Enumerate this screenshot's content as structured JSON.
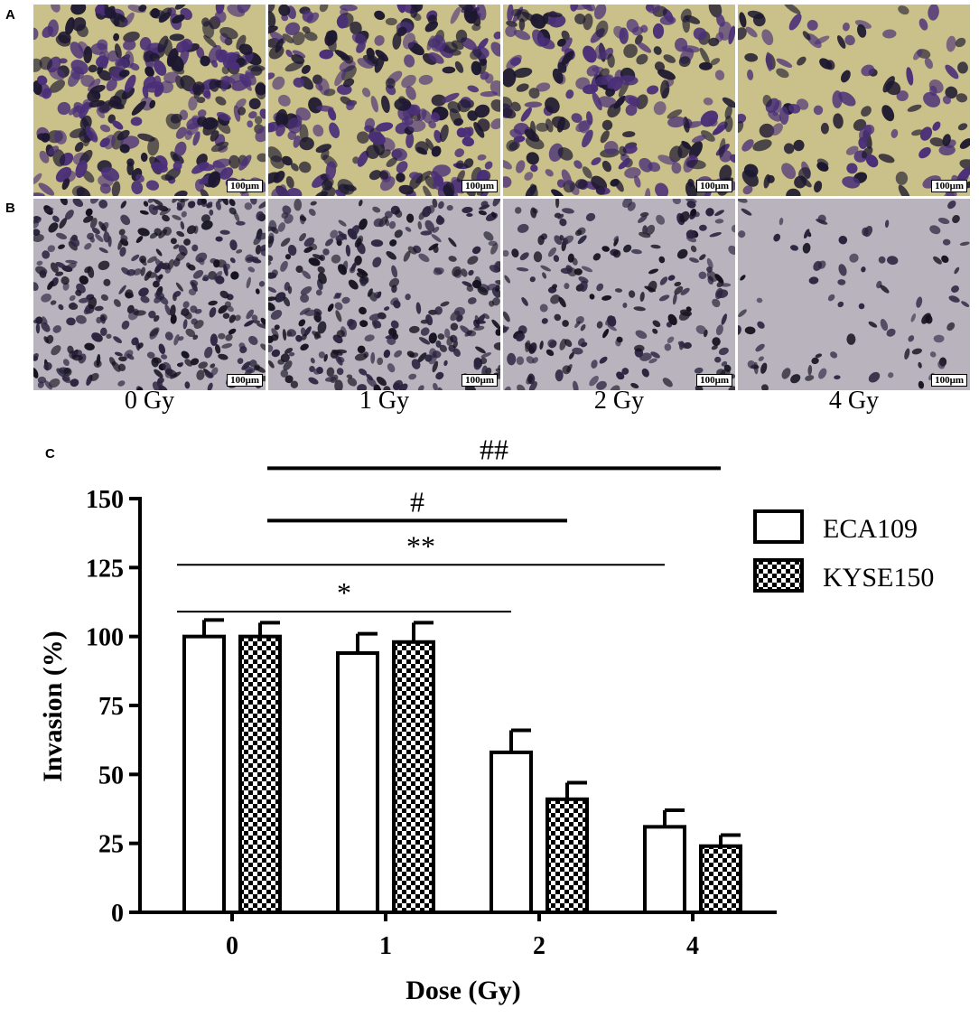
{
  "panels": {
    "a_label": "A",
    "b_label": "B",
    "c_label": "C"
  },
  "micrographs": {
    "scale_bar": "100μm",
    "row_a_colors": {
      "background": "#c9c189",
      "cell": "#4a2f78",
      "dark": "#1d1830"
    },
    "row_b_colors": {
      "background": "#b8b3bd",
      "cell": "#2b2440",
      "dark": "#15121f"
    },
    "row_a_density": [
      0.92,
      0.85,
      0.72,
      0.38
    ],
    "row_b_density": [
      0.95,
      0.82,
      0.55,
      0.22
    ],
    "dose_labels": [
      "0 Gy",
      "1 Gy",
      "2 Gy",
      "4 Gy"
    ]
  },
  "colors": {
    "ink": "#000000",
    "bar_fill": "#ffffff",
    "checker": "#000000"
  },
  "chart_data": {
    "type": "bar",
    "xlabel": "Dose (Gy)",
    "ylabel": "Invasion (%)",
    "categories": [
      "0",
      "1",
      "2",
      "4"
    ],
    "ylim": [
      0,
      150
    ],
    "yticks": [
      "0",
      "25",
      "50",
      "75",
      "100",
      "125",
      "150"
    ],
    "series": [
      {
        "name": "ECA109",
        "pattern": "open",
        "values": [
          100,
          94,
          58,
          31
        ],
        "errors": [
          6,
          7,
          8,
          6
        ]
      },
      {
        "name": "KYSE150",
        "pattern": "checkered",
        "values": [
          100,
          98,
          41,
          24
        ],
        "errors": [
          5,
          7,
          6,
          4
        ]
      }
    ],
    "significance": [
      {
        "label": "##",
        "level": 161,
        "from": [
          0,
          "KYSE150"
        ],
        "to": [
          3,
          "ECA109"
        ],
        "thick": true
      },
      {
        "label": "#",
        "level": 142,
        "from": [
          0,
          "KYSE150"
        ],
        "to": [
          2,
          "ECA109"
        ],
        "thick": true
      },
      {
        "label": "**",
        "level": 126,
        "from": [
          0,
          "ECA109"
        ],
        "to": [
          3,
          "ECA109"
        ],
        "thick": false
      },
      {
        "label": "*",
        "level": 109,
        "from": [
          0,
          "ECA109"
        ],
        "to": [
          2,
          "ECA109"
        ],
        "thick": false
      }
    ],
    "legend_position": "top-right"
  }
}
